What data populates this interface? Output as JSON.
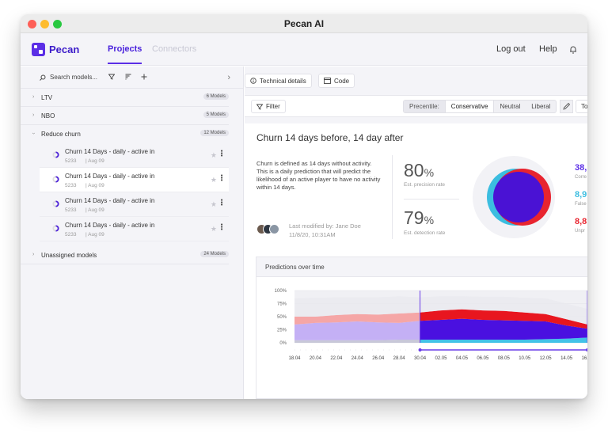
{
  "window": {
    "title": "Pecan AI"
  },
  "nav": {
    "logo_text": "Pecan",
    "tabs": [
      {
        "label": "Projects"
      },
      {
        "label": "Connectors"
      }
    ],
    "logout": "Log out",
    "help": "Help"
  },
  "sidebar": {
    "search_placeholder": "Search models...",
    "groups": [
      {
        "label": "LTV",
        "count": "6 Models"
      },
      {
        "label": "NBO",
        "count": "5 Models"
      },
      {
        "label": "Reduce churn",
        "count": "12 Models"
      },
      {
        "label": "Unassigned models",
        "count": "24 Models"
      }
    ],
    "models": [
      {
        "name": "Churn 14 Days - daily - active in",
        "id": "5233",
        "date": "Aug 09"
      },
      {
        "name": "Churn 14 Days - daily - active in",
        "id": "5233",
        "date": "Aug 09"
      },
      {
        "name": "Churn 14 Days - daily - active in",
        "id": "5233",
        "date": "Aug 09"
      },
      {
        "name": "Churn 14 Days - daily - active in",
        "id": "5233",
        "date": "Aug 09"
      }
    ]
  },
  "toolbar": {
    "technical_details": "Technical details",
    "code": "Code",
    "filter": "Filter",
    "precentile_label": "Precentile:",
    "options": [
      "Conservative",
      "Neutral",
      "Liberal"
    ],
    "selected": "Conservative",
    "top": "To"
  },
  "model_card": {
    "title": "Churn 14 days before, 14 day after",
    "description": "Churn is defined as 14 days without activity. This is a daily prediction that will predict the likelihood of an active player to have no activity within 14 days.",
    "modified_by": "Last modified by: Jane Doe",
    "modified_at": "11/8/20, 10:31AM",
    "precision": {
      "value": "80",
      "unit": "%",
      "label": "Est. precision rate"
    },
    "detection": {
      "value": "79",
      "unit": "%",
      "label": "Est. detection rate"
    },
    "right_stats": [
      {
        "value": "38,",
        "label": "Corre",
        "color": "#5b2ee6"
      },
      {
        "value": "8,9",
        "label": "False",
        "color": "#3bbde0"
      },
      {
        "value": "8,8",
        "label": "Unpr",
        "color": "#e8242f"
      }
    ]
  },
  "predictions": {
    "title": "Predictions over time"
  },
  "chart_data": {
    "type": "area",
    "title": "Predictions over time",
    "y_ticks": [
      "100%",
      "75%",
      "50%",
      "25%",
      "0%"
    ],
    "x_ticks": [
      "18.04",
      "20.04",
      "22.04",
      "24.04",
      "26.04",
      "28.04",
      "30.04",
      "02.05",
      "04.05",
      "06.05",
      "08.05",
      "10.05",
      "12.05",
      "14.05",
      "16.05"
    ],
    "ylim": [
      0,
      100
    ],
    "series": [
      {
        "values": [
          5,
          5,
          5,
          5,
          5,
          6,
          6,
          6,
          6,
          6,
          6,
          6,
          7,
          8,
          10
        ]
      },
      {
        "values": [
          30,
          33,
          34,
          36,
          34,
          32,
          36,
          38,
          40,
          38,
          37,
          36,
          34,
          25,
          17
        ]
      },
      {
        "values": [
          15,
          12,
          14,
          14,
          15,
          18,
          16,
          18,
          18,
          18,
          18,
          16,
          14,
          12,
          8
        ]
      },
      {
        "values": [
          35,
          36,
          34,
          32,
          33,
          33,
          29,
          27,
          25,
          26,
          27,
          28,
          30,
          30,
          30
        ]
      }
    ]
  }
}
